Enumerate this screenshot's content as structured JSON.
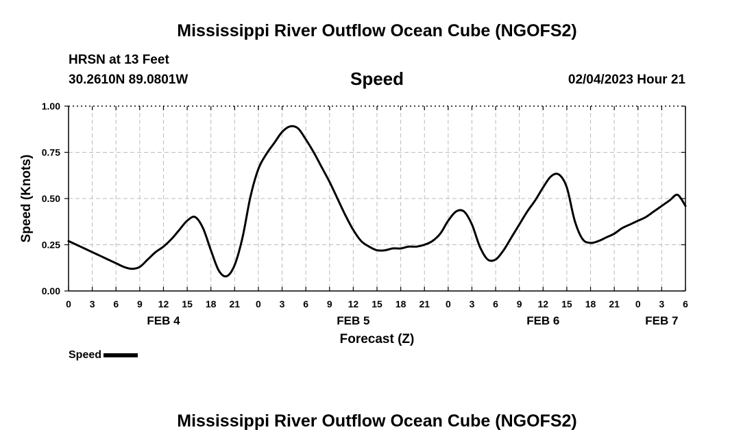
{
  "header": {
    "title": "Mississippi River Outflow Ocean Cube (NGOFS2)",
    "station": "HRSN at 13 Feet",
    "coordinates": "30.2610N  89.0801W",
    "plot_title": "Speed",
    "datetime": "02/04/2023 Hour 21",
    "footer_title": "Mississippi River Outflow Ocean Cube (NGOFS2)"
  },
  "legend": {
    "label": "Speed"
  },
  "colors": {
    "line": "#000000",
    "grid": "#bbbbbb"
  },
  "chart_data": {
    "type": "line",
    "xlabel": "Forecast (Z)",
    "ylabel": "Speed (Knots)",
    "xlim": [
      0,
      78
    ],
    "ylim": [
      0,
      1
    ],
    "grid": true,
    "legend_placement": "bottom-left",
    "x_tick_values": [
      0,
      3,
      6,
      9,
      12,
      15,
      18,
      21,
      24,
      27,
      30,
      33,
      36,
      39,
      42,
      45,
      48,
      51,
      54,
      57,
      60,
      63,
      66,
      69,
      72,
      75,
      78
    ],
    "x_tick_labels": [
      "0",
      "3",
      "6",
      "9",
      "12",
      "15",
      "18",
      "21",
      "0",
      "3",
      "6",
      "9",
      "12",
      "15",
      "18",
      "21",
      "0",
      "3",
      "6",
      "9",
      "12",
      "15",
      "18",
      "21",
      "0",
      "3",
      "6"
    ],
    "y_ticks": [
      0,
      0.25,
      0.5,
      0.75,
      1
    ],
    "y_tick_labels": [
      "0.00",
      "0.25",
      "0.50",
      "0.75",
      "1.00"
    ],
    "date_labels": [
      {
        "x": 12,
        "label": "FEB 4"
      },
      {
        "x": 36,
        "label": "FEB 5"
      },
      {
        "x": 60,
        "label": "FEB 6"
      },
      {
        "x": 75,
        "label": "FEB 7"
      }
    ],
    "series": [
      {
        "name": "Speed",
        "x": [
          0,
          1,
          2,
          3,
          4,
          5,
          6,
          7,
          8,
          9,
          10,
          11,
          12,
          13,
          14,
          15,
          16,
          17,
          18,
          19,
          20,
          21,
          22,
          23,
          24,
          25,
          26,
          27,
          28,
          29,
          30,
          31,
          32,
          33,
          34,
          35,
          36,
          37,
          38,
          39,
          40,
          41,
          42,
          43,
          44,
          45,
          46,
          47,
          48,
          49,
          50,
          51,
          52,
          53,
          54,
          55,
          56,
          57,
          58,
          59,
          60,
          61,
          62,
          63,
          64,
          65,
          66,
          67,
          68,
          69,
          70,
          71,
          72,
          73,
          74,
          75,
          76,
          77,
          78
        ],
        "values": [
          0.27,
          0.25,
          0.23,
          0.21,
          0.19,
          0.17,
          0.15,
          0.13,
          0.12,
          0.13,
          0.17,
          0.21,
          0.24,
          0.28,
          0.33,
          0.38,
          0.4,
          0.34,
          0.22,
          0.11,
          0.08,
          0.14,
          0.29,
          0.51,
          0.66,
          0.74,
          0.8,
          0.86,
          0.89,
          0.88,
          0.82,
          0.75,
          0.67,
          0.59,
          0.5,
          0.41,
          0.33,
          0.27,
          0.24,
          0.22,
          0.22,
          0.23,
          0.23,
          0.24,
          0.24,
          0.25,
          0.27,
          0.31,
          0.38,
          0.43,
          0.43,
          0.36,
          0.24,
          0.17,
          0.17,
          0.22,
          0.29,
          0.36,
          0.43,
          0.49,
          0.56,
          0.62,
          0.63,
          0.56,
          0.38,
          0.28,
          0.26,
          0.27,
          0.29,
          0.31,
          0.34,
          0.36,
          0.38,
          0.4,
          0.43,
          0.46,
          0.49,
          0.52,
          0.46
        ]
      }
    ]
  }
}
